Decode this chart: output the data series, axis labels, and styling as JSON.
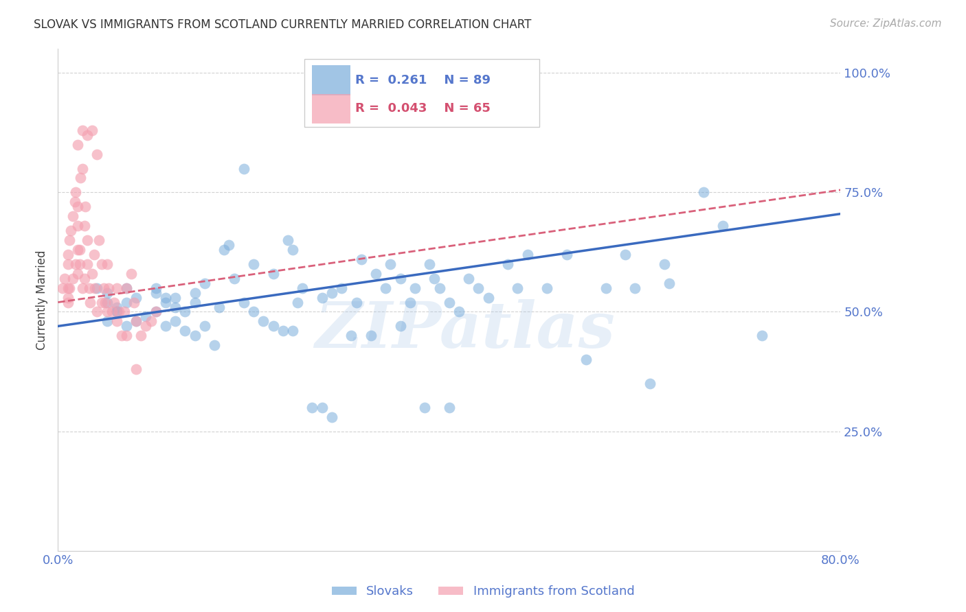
{
  "title": "SLOVAK VS IMMIGRANTS FROM SCOTLAND CURRENTLY MARRIED CORRELATION CHART",
  "source_text": "Source: ZipAtlas.com",
  "ylabel": "Currently Married",
  "xlim": [
    0.0,
    0.8
  ],
  "ylim": [
    0.0,
    1.05
  ],
  "yticks": [
    0.25,
    0.5,
    0.75,
    1.0
  ],
  "ytick_labels": [
    "25.0%",
    "50.0%",
    "75.0%",
    "100.0%"
  ],
  "xticks": [
    0.0,
    0.1,
    0.2,
    0.3,
    0.4,
    0.5,
    0.6,
    0.7,
    0.8
  ],
  "xtick_labels": [
    "0.0%",
    "",
    "",
    "",
    "",
    "",
    "",
    "",
    "80.0%"
  ],
  "background_color": "#ffffff",
  "grid_color": "#cccccc",
  "blue_color": "#7aaddb",
  "pink_color": "#f4a0b0",
  "blue_line_color": "#3a6abf",
  "pink_line_color": "#d9607a",
  "tick_label_color": "#5577cc",
  "legend_R_blue": "0.261",
  "legend_N_blue": "89",
  "legend_R_pink": "0.043",
  "legend_N_pink": "65",
  "watermark": "ZIPatlas",
  "blue_trend_x0": 0.0,
  "blue_trend_y0": 0.47,
  "blue_trend_x1": 0.8,
  "blue_trend_y1": 0.705,
  "pink_trend_x0": 0.0,
  "pink_trend_y0": 0.52,
  "pink_trend_x1": 0.8,
  "pink_trend_y1": 0.755,
  "blue_scatter_x": [
    0.04,
    0.05,
    0.06,
    0.07,
    0.05,
    0.06,
    0.08,
    0.07,
    0.06,
    0.1,
    0.11,
    0.12,
    0.1,
    0.11,
    0.13,
    0.14,
    0.12,
    0.15,
    0.165,
    0.14,
    0.17,
    0.19,
    0.2,
    0.22,
    0.235,
    0.24,
    0.25,
    0.27,
    0.28,
    0.29,
    0.305,
    0.31,
    0.325,
    0.335,
    0.34,
    0.35,
    0.36,
    0.365,
    0.38,
    0.385,
    0.39,
    0.4,
    0.41,
    0.42,
    0.43,
    0.44,
    0.46,
    0.47,
    0.48,
    0.5,
    0.52,
    0.54,
    0.56,
    0.58,
    0.59,
    0.605,
    0.62,
    0.625,
    0.66,
    0.68,
    0.05,
    0.07,
    0.08,
    0.09,
    0.1,
    0.11,
    0.12,
    0.13,
    0.14,
    0.15,
    0.16,
    0.175,
    0.18,
    0.19,
    0.2,
    0.21,
    0.22,
    0.23,
    0.24,
    0.245,
    0.26,
    0.27,
    0.28,
    0.3,
    0.32,
    0.35,
    0.375,
    0.4,
    0.72
  ],
  "blue_scatter_y": [
    0.55,
    0.52,
    0.5,
    0.55,
    0.54,
    0.51,
    0.53,
    0.52,
    0.5,
    0.54,
    0.53,
    0.51,
    0.55,
    0.52,
    0.5,
    0.54,
    0.53,
    0.56,
    0.51,
    0.52,
    0.63,
    0.8,
    0.6,
    0.58,
    0.65,
    0.63,
    0.55,
    0.53,
    0.54,
    0.55,
    0.52,
    0.61,
    0.58,
    0.55,
    0.6,
    0.57,
    0.52,
    0.55,
    0.6,
    0.57,
    0.55,
    0.52,
    0.5,
    0.57,
    0.55,
    0.53,
    0.6,
    0.55,
    0.62,
    0.55,
    0.62,
    0.4,
    0.55,
    0.62,
    0.55,
    0.35,
    0.6,
    0.56,
    0.75,
    0.68,
    0.48,
    0.47,
    0.48,
    0.49,
    0.5,
    0.47,
    0.48,
    0.46,
    0.45,
    0.47,
    0.43,
    0.64,
    0.57,
    0.52,
    0.5,
    0.48,
    0.47,
    0.46,
    0.46,
    0.52,
    0.3,
    0.3,
    0.28,
    0.45,
    0.45,
    0.47,
    0.3,
    0.3,
    0.45
  ],
  "pink_scatter_x": [
    0.005,
    0.007,
    0.01,
    0.01,
    0.01,
    0.01,
    0.01,
    0.012,
    0.013,
    0.015,
    0.017,
    0.018,
    0.02,
    0.02,
    0.02,
    0.02,
    0.022,
    0.023,
    0.025,
    0.025,
    0.027,
    0.028,
    0.03,
    0.03,
    0.032,
    0.033,
    0.035,
    0.037,
    0.038,
    0.04,
    0.042,
    0.045,
    0.047,
    0.048,
    0.05,
    0.052,
    0.055,
    0.057,
    0.06,
    0.062,
    0.065,
    0.068,
    0.07,
    0.075,
    0.078,
    0.08,
    0.085,
    0.09,
    0.095,
    0.1,
    0.02,
    0.025,
    0.03,
    0.035,
    0.04,
    0.045,
    0.05,
    0.06,
    0.07,
    0.08,
    0.012,
    0.015,
    0.018,
    0.022,
    0.027
  ],
  "pink_scatter_y": [
    0.55,
    0.57,
    0.6,
    0.62,
    0.55,
    0.52,
    0.53,
    0.65,
    0.67,
    0.7,
    0.73,
    0.75,
    0.63,
    0.68,
    0.72,
    0.58,
    0.6,
    0.78,
    0.8,
    0.55,
    0.68,
    0.72,
    0.65,
    0.6,
    0.55,
    0.52,
    0.58,
    0.62,
    0.55,
    0.5,
    0.65,
    0.6,
    0.55,
    0.52,
    0.6,
    0.55,
    0.5,
    0.52,
    0.55,
    0.5,
    0.45,
    0.5,
    0.55,
    0.58,
    0.52,
    0.48,
    0.45,
    0.47,
    0.48,
    0.5,
    0.85,
    0.88,
    0.87,
    0.88,
    0.83,
    0.52,
    0.5,
    0.48,
    0.45,
    0.38,
    0.55,
    0.57,
    0.6,
    0.63,
    0.57
  ]
}
